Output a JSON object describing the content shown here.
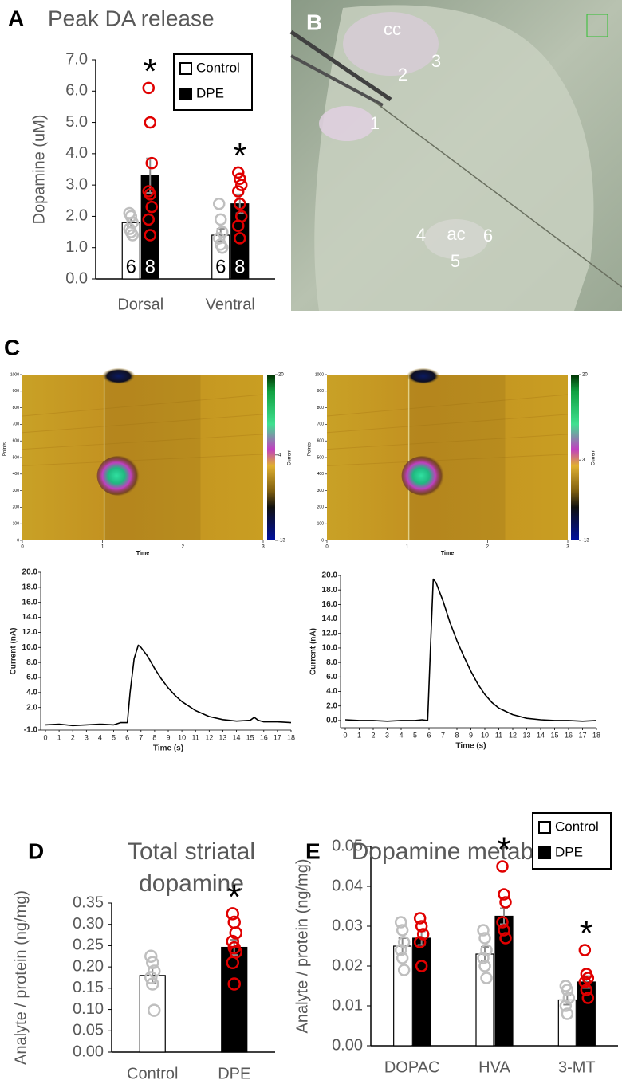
{
  "panel_labels": [
    "A",
    "B",
    "C",
    "D",
    "E"
  ],
  "photo": {
    "labels": [
      "cc",
      "1",
      "2",
      "3",
      "4",
      "ac",
      "5",
      "6"
    ]
  },
  "chart_data": [
    {
      "type": "bar",
      "title": "Peak DA release",
      "ylabel": "Dopamine (uM)",
      "categories": [
        "Dorsal",
        "Ventral"
      ],
      "ylim": [
        0,
        7
      ],
      "yticks": [
        {
          "value": 0,
          "label": "0.0"
        },
        {
          "value": 1,
          "label": "1.0"
        },
        {
          "value": 2,
          "label": "2.0"
        },
        {
          "value": 3,
          "label": "3.0"
        },
        {
          "value": 4,
          "label": "4.0"
        },
        {
          "value": 5,
          "label": "5.0"
        },
        {
          "value": 6,
          "label": "6.0"
        },
        {
          "value": 7,
          "label": "7.0"
        }
      ],
      "legend": "upper right",
      "series": [
        {
          "name": "Control",
          "color": "#ffffff",
          "point_color": "#bfbfbf",
          "values": [
            1.8,
            1.4
          ],
          "errors": [
            0.15,
            0.2
          ],
          "points": [
            [
              2.1,
              2.0,
              1.8,
              1.6,
              1.5,
              1.4
            ],
            [
              2.4,
              1.9,
              1.5,
              1.3,
              1.1,
              1.0
            ]
          ],
          "n_labels": [
            "6",
            "6"
          ]
        },
        {
          "name": "DPE",
          "color": "#000000",
          "point_color": "#e00000",
          "values": [
            3.3,
            2.4
          ],
          "errors": [
            0.55,
            0.3
          ],
          "points": [
            [
              6.1,
              5.0,
              3.7,
              2.8,
              2.7,
              2.3,
              1.9,
              1.4
            ],
            [
              3.4,
              3.2,
              3.0,
              2.8,
              2.4,
              2.0,
              1.7,
              1.3
            ]
          ],
          "n_labels": [
            "8",
            "8"
          ]
        }
      ],
      "annotations": [
        {
          "text": "*",
          "category": 0,
          "series": 1
        },
        {
          "text": "*",
          "category": 1,
          "series": 1
        }
      ]
    },
    {
      "type": "heatmap",
      "xlabel": "Time",
      "ylabel": "Points",
      "xlim": [
        0,
        3
      ],
      "xticks": [
        0,
        1,
        2,
        3
      ],
      "ylim": [
        0,
        1000
      ],
      "yticks": [
        0,
        100,
        200,
        300,
        400,
        500,
        600,
        700,
        800,
        900,
        1000
      ],
      "colorbar": {
        "label": "Current",
        "lim": [
          -13,
          20
        ],
        "ticks": [
          20,
          4,
          -13
        ]
      }
    },
    {
      "type": "heatmap",
      "xlabel": "Time",
      "ylabel": "Points",
      "xlim": [
        0,
        3
      ],
      "xticks": [
        0,
        1,
        2,
        3
      ],
      "ylim": [
        0,
        1000
      ],
      "yticks": [
        0,
        100,
        200,
        300,
        400,
        500,
        600,
        700,
        800,
        900,
        1000
      ],
      "colorbar": {
        "label": "Current",
        "lim": [
          -13,
          20
        ],
        "ticks": [
          20,
          3,
          -13
        ]
      }
    },
    {
      "type": "line",
      "xlabel": "Time (s)",
      "ylabel": "Current (nA)",
      "xlim": [
        0,
        18
      ],
      "xticks": [
        0,
        1,
        2,
        3,
        4,
        5,
        6,
        7,
        8,
        9,
        10,
        11,
        12,
        13,
        14,
        15,
        16,
        17,
        18
      ],
      "ylim": [
        -1,
        20
      ],
      "yticks": [
        {
          "value": -1,
          "label": "-1.0"
        },
        {
          "value": 2,
          "label": "2.0"
        },
        {
          "value": 4,
          "label": "4.0"
        },
        {
          "value": 6,
          "label": "6.0"
        },
        {
          "value": 8,
          "label": "8.0"
        },
        {
          "value": 10,
          "label": "10.0"
        },
        {
          "value": 12,
          "label": "12.0"
        },
        {
          "value": 14,
          "label": "14.0"
        },
        {
          "value": 16,
          "label": "16.0"
        },
        {
          "value": 18,
          "label": "18.0"
        },
        {
          "value": 20,
          "label": "20.0"
        }
      ],
      "x": [
        0,
        1,
        2,
        3,
        4,
        5,
        5.5,
        6,
        6.2,
        6.5,
        6.8,
        7,
        7.5,
        8,
        8.5,
        9,
        9.5,
        10,
        11,
        12,
        13,
        14,
        15,
        15.3,
        15.6,
        16,
        17,
        18
      ],
      "series": [
        {
          "color": "#000000",
          "values": [
            -0.3,
            -0.2,
            -0.4,
            -0.3,
            -0.2,
            -0.3,
            0,
            0,
            4,
            8.5,
            10.3,
            10,
            8.8,
            7.2,
            5.8,
            4.6,
            3.6,
            2.8,
            1.6,
            0.8,
            0.4,
            0.2,
            0.3,
            0.7,
            0.3,
            0.1,
            0.1,
            0
          ]
        }
      ]
    },
    {
      "type": "line",
      "xlabel": "Time (s)",
      "ylabel": "Current (nA)",
      "xlim": [
        0,
        18
      ],
      "xticks": [
        0,
        1,
        2,
        3,
        4,
        5,
        6,
        7,
        8,
        9,
        10,
        11,
        12,
        13,
        14,
        15,
        16,
        17,
        18
      ],
      "ylim": [
        -1,
        20
      ],
      "yticks": [
        {
          "value": 0,
          "label": "0.0"
        },
        {
          "value": 2,
          "label": "2.0"
        },
        {
          "value": 4,
          "label": "4.0"
        },
        {
          "value": 6,
          "label": "6.0"
        },
        {
          "value": 8,
          "label": "8.0"
        },
        {
          "value": 10,
          "label": "10.0"
        },
        {
          "value": 12,
          "label": "12.0"
        },
        {
          "value": 14,
          "label": "14.0"
        },
        {
          "value": 16,
          "label": "16.0"
        },
        {
          "value": 18,
          "label": "18.0"
        },
        {
          "value": 20,
          "label": "20.0"
        }
      ],
      "x": [
        0,
        1,
        2,
        3,
        4,
        5,
        5.5,
        5.9,
        6.1,
        6.3,
        6.5,
        7,
        7.5,
        8,
        8.5,
        9,
        9.5,
        10,
        10.5,
        11,
        12,
        13,
        14,
        15,
        16,
        17,
        18
      ],
      "series": [
        {
          "color": "#000000",
          "values": [
            0.1,
            0,
            0,
            -0.1,
            0,
            0,
            0.1,
            0,
            10,
            19.5,
            19,
            16.5,
            13.5,
            11,
            8.8,
            6.8,
            5,
            3.6,
            2.5,
            1.7,
            0.8,
            0.3,
            0.1,
            0,
            0,
            -0.1,
            0
          ]
        }
      ]
    },
    {
      "type": "bar",
      "title": [
        "Total striatal",
        "dopamine"
      ],
      "ylabel": "Analyte / protein (ng/mg)",
      "categories": [
        "Control",
        "DPE"
      ],
      "ylim": [
        0,
        0.35
      ],
      "yticks": [
        {
          "value": 0,
          "label": "0.00"
        },
        {
          "value": 0.05,
          "label": "0.05"
        },
        {
          "value": 0.1,
          "label": "0.10"
        },
        {
          "value": 0.15,
          "label": "0.15"
        },
        {
          "value": 0.2,
          "label": "0.20"
        },
        {
          "value": 0.25,
          "label": "0.25"
        },
        {
          "value": 0.3,
          "label": "0.30"
        },
        {
          "value": 0.35,
          "label": "0.35"
        }
      ],
      "series": [
        {
          "colors": [
            "#ffffff",
            "#000000"
          ],
          "point_colors": [
            "#bfbfbf",
            "#e00000"
          ],
          "values": [
            0.18,
            0.246
          ],
          "errors": [
            0.018,
            0.018
          ],
          "points": [
            [
              0.225,
              0.21,
              0.19,
              0.175,
              0.16,
              0.098
            ],
            [
              0.325,
              0.305,
              0.28,
              0.26,
              0.245,
              0.235,
              0.21,
              0.16
            ]
          ]
        }
      ],
      "annotations": [
        {
          "text": "*",
          "category": 1,
          "series": 0
        }
      ]
    },
    {
      "type": "bar",
      "title": "Dopamine metabolites",
      "ylabel": "Analyte / protein (ng/mg)",
      "categories": [
        "DOPAC",
        "HVA",
        "3-MT"
      ],
      "ylim": [
        0,
        0.05
      ],
      "yticks": [
        {
          "value": 0,
          "label": "0.00"
        },
        {
          "value": 0.01,
          "label": "0.01"
        },
        {
          "value": 0.02,
          "label": "0.02"
        },
        {
          "value": 0.03,
          "label": "0.03"
        },
        {
          "value": 0.04,
          "label": "0.04"
        },
        {
          "value": 0.05,
          "label": "0.05"
        }
      ],
      "legend": "upper right",
      "series": [
        {
          "name": "Control",
          "color": "#ffffff",
          "point_color": "#bfbfbf",
          "values": [
            0.025,
            0.023,
            0.0115
          ],
          "errors": [
            0.002,
            0.0018,
            0.0012
          ],
          "points": [
            [
              0.031,
              0.029,
              0.026,
              0.024,
              0.022,
              0.019
            ],
            [
              0.029,
              0.027,
              0.024,
              0.022,
              0.02,
              0.017
            ],
            [
              0.015,
              0.014,
              0.012,
              0.01,
              0.008
            ]
          ]
        },
        {
          "name": "DPE",
          "color": "#000000",
          "point_color": "#e00000",
          "values": [
            0.027,
            0.0325,
            0.016
          ],
          "errors": [
            0.0017,
            0.002,
            0.0015
          ],
          "points": [
            [
              0.032,
              0.03,
              0.028,
              0.026,
              0.02
            ],
            [
              0.045,
              0.038,
              0.036,
              0.031,
              0.029,
              0.027
            ],
            [
              0.024,
              0.018,
              0.017,
              0.016,
              0.014,
              0.012
            ]
          ]
        }
      ],
      "annotations": [
        {
          "text": "*",
          "category": 1,
          "series": 1
        },
        {
          "text": "*",
          "category": 2,
          "series": 1
        }
      ]
    }
  ]
}
